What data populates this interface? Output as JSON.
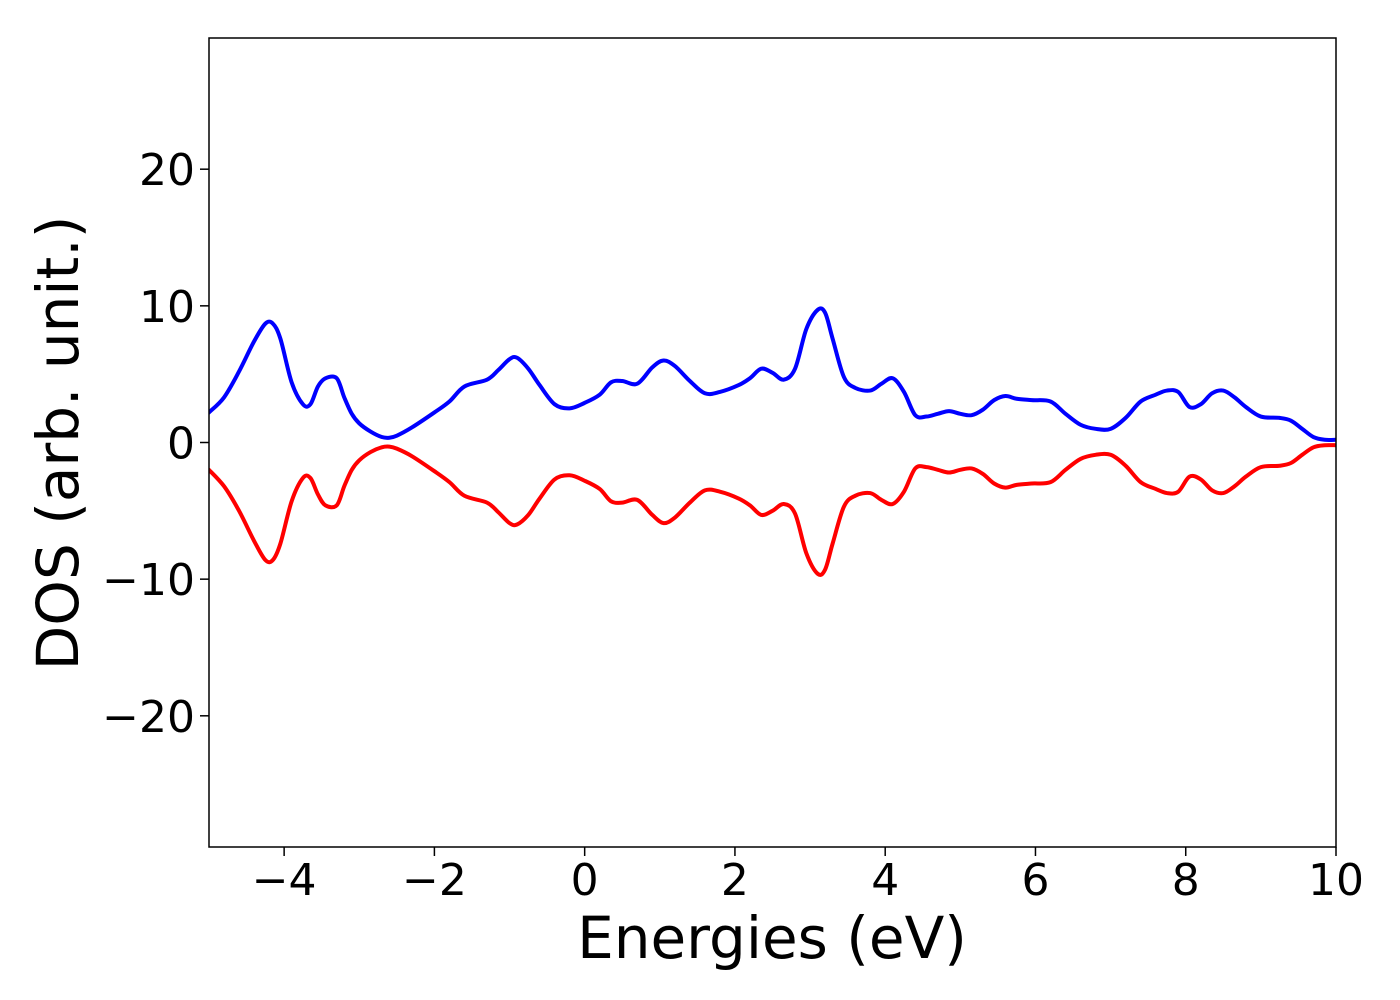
{
  "chart_data": {
    "type": "line",
    "title": "",
    "xlabel": "Energies (eV)",
    "ylabel": "DOS (arb. unit.)",
    "xlim": [
      -5,
      10
    ],
    "ylim": [
      -29.6,
      29.6
    ],
    "xticks": [
      -4,
      -2,
      0,
      2,
      4,
      6,
      8,
      10
    ],
    "xtick_labels": [
      "−4",
      "−2",
      "0",
      "2",
      "4",
      "6",
      "8",
      "10"
    ],
    "yticks": [
      -20,
      -10,
      0,
      10,
      20
    ],
    "ytick_labels": [
      "−20",
      "−10",
      "0",
      "10",
      "20"
    ],
    "grid": false,
    "legend": "none",
    "series": [
      {
        "color": "#0000ff",
        "x": [
          -5.0,
          -4.8,
          -4.6,
          -4.4,
          -4.25,
          -4.15,
          -4.05,
          -3.9,
          -3.75,
          -3.65,
          -3.55,
          -3.45,
          -3.3,
          -3.2,
          -3.1,
          -3.0,
          -2.85,
          -2.7,
          -2.6,
          -2.5,
          -2.3,
          -2.0,
          -1.8,
          -1.6,
          -1.3,
          -1.15,
          -1.0,
          -0.9,
          -0.75,
          -0.6,
          -0.4,
          -0.2,
          0.0,
          0.2,
          0.35,
          0.5,
          0.7,
          0.9,
          1.05,
          1.2,
          1.4,
          1.6,
          1.8,
          2.05,
          2.2,
          2.35,
          2.5,
          2.65,
          2.8,
          2.95,
          3.1,
          3.2,
          3.3,
          3.45,
          3.6,
          3.8,
          3.95,
          4.1,
          4.25,
          4.4,
          4.55,
          4.7,
          4.85,
          5.0,
          5.15,
          5.3,
          5.45,
          5.6,
          5.75,
          5.95,
          6.2,
          6.4,
          6.6,
          6.8,
          7.0,
          7.2,
          7.4,
          7.6,
          7.75,
          7.9,
          8.05,
          8.2,
          8.35,
          8.5,
          8.65,
          8.8,
          9.0,
          9.25,
          9.4,
          9.55,
          9.7,
          9.85,
          10.0
        ],
        "y": [
          2.2,
          3.3,
          5.2,
          7.4,
          8.7,
          8.7,
          7.6,
          4.4,
          2.8,
          2.8,
          4.1,
          4.7,
          4.7,
          3.3,
          2.1,
          1.4,
          0.8,
          0.4,
          0.35,
          0.5,
          1.1,
          2.2,
          3.0,
          4.1,
          4.6,
          5.3,
          6.1,
          6.2,
          5.4,
          4.2,
          2.8,
          2.5,
          2.9,
          3.5,
          4.4,
          4.5,
          4.3,
          5.5,
          6.0,
          5.6,
          4.5,
          3.6,
          3.7,
          4.2,
          4.7,
          5.4,
          5.1,
          4.6,
          5.4,
          8.3,
          9.7,
          9.5,
          7.6,
          4.8,
          4.0,
          3.8,
          4.3,
          4.7,
          3.7,
          2.0,
          1.9,
          2.1,
          2.3,
          2.1,
          2.0,
          2.4,
          3.1,
          3.4,
          3.2,
          3.1,
          3.0,
          2.1,
          1.3,
          1.0,
          1.0,
          1.8,
          3.0,
          3.5,
          3.8,
          3.7,
          2.6,
          2.8,
          3.6,
          3.8,
          3.3,
          2.6,
          1.9,
          1.8,
          1.6,
          1.0,
          0.4,
          0.2,
          0.2
        ]
      },
      {
        "color": "#ff0000",
        "x": [
          -5.0,
          -4.8,
          -4.6,
          -4.4,
          -4.25,
          -4.15,
          -4.05,
          -3.9,
          -3.75,
          -3.65,
          -3.55,
          -3.45,
          -3.3,
          -3.2,
          -3.1,
          -3.0,
          -2.85,
          -2.7,
          -2.6,
          -2.5,
          -2.3,
          -2.0,
          -1.8,
          -1.6,
          -1.3,
          -1.15,
          -1.0,
          -0.9,
          -0.75,
          -0.6,
          -0.4,
          -0.2,
          0.0,
          0.2,
          0.35,
          0.5,
          0.7,
          0.9,
          1.05,
          1.2,
          1.4,
          1.6,
          1.8,
          2.05,
          2.2,
          2.35,
          2.5,
          2.65,
          2.8,
          2.95,
          3.1,
          3.2,
          3.3,
          3.45,
          3.6,
          3.8,
          3.95,
          4.1,
          4.25,
          4.4,
          4.55,
          4.7,
          4.85,
          5.0,
          5.15,
          5.3,
          5.45,
          5.6,
          5.75,
          5.95,
          6.2,
          6.4,
          6.6,
          6.8,
          7.0,
          7.2,
          7.4,
          7.6,
          7.75,
          7.9,
          8.05,
          8.2,
          8.35,
          8.5,
          8.65,
          8.8,
          9.0,
          9.25,
          9.4,
          9.55,
          9.7,
          9.85,
          10.0
        ],
        "y": [
          -2.0,
          -3.2,
          -5.0,
          -7.2,
          -8.6,
          -8.6,
          -7.4,
          -4.3,
          -2.6,
          -2.6,
          -3.8,
          -4.6,
          -4.6,
          -3.2,
          -2.0,
          -1.3,
          -0.7,
          -0.35,
          -0.3,
          -0.45,
          -1.0,
          -2.1,
          -2.9,
          -3.9,
          -4.4,
          -5.1,
          -5.9,
          -6.0,
          -5.3,
          -4.1,
          -2.7,
          -2.4,
          -2.8,
          -3.4,
          -4.3,
          -4.4,
          -4.2,
          -5.3,
          -5.9,
          -5.5,
          -4.4,
          -3.5,
          -3.6,
          -4.1,
          -4.6,
          -5.3,
          -5.0,
          -4.5,
          -5.2,
          -8.1,
          -9.6,
          -9.3,
          -7.4,
          -4.7,
          -3.9,
          -3.7,
          -4.2,
          -4.5,
          -3.6,
          -1.9,
          -1.8,
          -2.0,
          -2.2,
          -2.0,
          -1.9,
          -2.3,
          -3.0,
          -3.3,
          -3.1,
          -3.0,
          -2.9,
          -2.0,
          -1.2,
          -0.9,
          -0.9,
          -1.7,
          -2.9,
          -3.4,
          -3.7,
          -3.6,
          -2.5,
          -2.7,
          -3.5,
          -3.7,
          -3.2,
          -2.5,
          -1.8,
          -1.7,
          -1.5,
          -0.9,
          -0.35,
          -0.2,
          -0.2
        ]
      }
    ]
  }
}
